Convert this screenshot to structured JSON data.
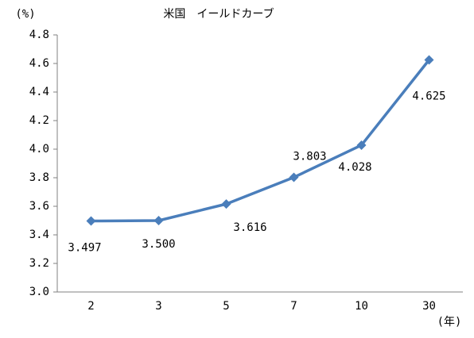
{
  "chart_data": {
    "type": "line",
    "title": "米国　イールドカーブ",
    "y_label": "(%)",
    "x_label": "(年)",
    "categories": [
      "2",
      "3",
      "5",
      "7",
      "10",
      "30"
    ],
    "values": [
      3.497,
      3.5,
      3.616,
      3.803,
      4.028,
      4.625
    ],
    "value_labels": [
      "3.497",
      "3.500",
      "3.616",
      "3.803",
      "4.028",
      "4.625"
    ],
    "color": "#4a7ebb",
    "ylim": [
      3.0,
      4.8
    ],
    "yticks": [
      {
        "value": 3.0,
        "label": "3.0"
      },
      {
        "value": 3.2,
        "label": "3.2"
      },
      {
        "value": 3.4,
        "label": "3.4"
      },
      {
        "value": 3.6,
        "label": "3.6"
      },
      {
        "value": 3.8,
        "label": "3.8"
      },
      {
        "value": 4.0,
        "label": "4.0"
      },
      {
        "value": 4.2,
        "label": "4.2"
      },
      {
        "value": 4.4,
        "label": "4.4"
      },
      {
        "value": 4.6,
        "label": "4.6"
      },
      {
        "value": 4.8,
        "label": "4.8"
      }
    ],
    "grid": false
  }
}
